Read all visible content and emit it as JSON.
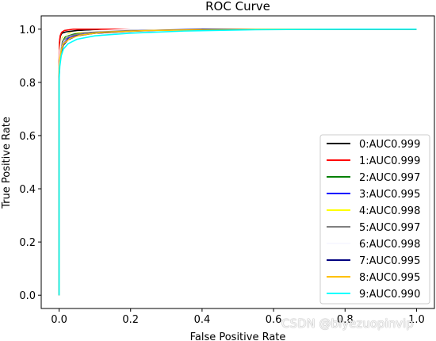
{
  "chart_data": {
    "type": "line",
    "title": "ROC Curve",
    "xlabel": "False Positive Rate",
    "ylabel": "True Positive Rate",
    "xlim": [
      -0.05,
      1.05
    ],
    "ylim": [
      -0.05,
      1.05
    ],
    "xticks": [
      "0.0",
      "0.2",
      "0.4",
      "0.6",
      "0.8",
      "1.0"
    ],
    "yticks": [
      "0.0",
      "0.2",
      "0.4",
      "0.6",
      "0.8",
      "1.0"
    ],
    "grid": false,
    "legend_position": "lower-right",
    "series": [
      {
        "name": "0:AUC0.999",
        "color": "#000000",
        "points": [
          [
            0,
            0
          ],
          [
            0,
            0.86
          ],
          [
            0.001,
            0.93
          ],
          [
            0.002,
            0.96
          ],
          [
            0.004,
            0.975
          ],
          [
            0.008,
            0.985
          ],
          [
            0.02,
            0.99
          ],
          [
            0.05,
            0.995
          ],
          [
            0.12,
            1.0
          ],
          [
            1,
            1
          ]
        ]
      },
      {
        "name": "1:AUC0.999",
        "color": "#ff0000",
        "points": [
          [
            0,
            0
          ],
          [
            0,
            0.88
          ],
          [
            0.001,
            0.95
          ],
          [
            0.003,
            0.975
          ],
          [
            0.007,
            0.988
          ],
          [
            0.015,
            0.995
          ],
          [
            0.04,
            1.0
          ],
          [
            1,
            1
          ]
        ]
      },
      {
        "name": "2:AUC0.997",
        "color": "#008000",
        "points": [
          [
            0,
            0
          ],
          [
            0,
            0.84
          ],
          [
            0.002,
            0.9
          ],
          [
            0.005,
            0.94
          ],
          [
            0.01,
            0.96
          ],
          [
            0.02,
            0.975
          ],
          [
            0.05,
            0.985
          ],
          [
            0.12,
            0.993
          ],
          [
            0.25,
            1.0
          ],
          [
            1,
            1
          ]
        ]
      },
      {
        "name": "3:AUC0.995",
        "color": "#0000ff",
        "points": [
          [
            0,
            0
          ],
          [
            0,
            0.82
          ],
          [
            0.002,
            0.88
          ],
          [
            0.006,
            0.92
          ],
          [
            0.012,
            0.945
          ],
          [
            0.025,
            0.965
          ],
          [
            0.05,
            0.978
          ],
          [
            0.1,
            0.985
          ],
          [
            0.2,
            0.992
          ],
          [
            0.35,
            1.0
          ],
          [
            1,
            1
          ]
        ]
      },
      {
        "name": "4:AUC0.998",
        "color": "#ffff00",
        "points": [
          [
            0,
            0
          ],
          [
            0,
            0.86
          ],
          [
            0.002,
            0.92
          ],
          [
            0.005,
            0.95
          ],
          [
            0.01,
            0.97
          ],
          [
            0.03,
            0.985
          ],
          [
            0.1,
            0.993
          ],
          [
            0.3,
            1.0
          ],
          [
            1,
            1
          ]
        ]
      },
      {
        "name": "5:AUC0.997",
        "color": "#808080",
        "points": [
          [
            0,
            0
          ],
          [
            0,
            0.84
          ],
          [
            0.002,
            0.9
          ],
          [
            0.005,
            0.935
          ],
          [
            0.012,
            0.958
          ],
          [
            0.03,
            0.975
          ],
          [
            0.07,
            0.986
          ],
          [
            0.15,
            0.994
          ],
          [
            0.3,
            1.0
          ],
          [
            1,
            1
          ]
        ]
      },
      {
        "name": "6:AUC0.998",
        "color": "#f8f8ff",
        "points": [
          [
            0,
            0
          ],
          [
            0,
            0.86
          ],
          [
            0.002,
            0.92
          ],
          [
            0.006,
            0.955
          ],
          [
            0.015,
            0.975
          ],
          [
            0.05,
            0.99
          ],
          [
            0.2,
            1.0
          ],
          [
            1,
            1
          ]
        ]
      },
      {
        "name": "7:AUC0.995",
        "color": "#000080",
        "points": [
          [
            0,
            0
          ],
          [
            0,
            0.82
          ],
          [
            0.002,
            0.88
          ],
          [
            0.006,
            0.915
          ],
          [
            0.012,
            0.94
          ],
          [
            0.025,
            0.96
          ],
          [
            0.05,
            0.975
          ],
          [
            0.1,
            0.985
          ],
          [
            0.22,
            0.994
          ],
          [
            0.4,
            1.0
          ],
          [
            1,
            1
          ]
        ]
      },
      {
        "name": "8:AUC0.995",
        "color": "#ffc000",
        "points": [
          [
            0,
            0
          ],
          [
            0,
            0.83
          ],
          [
            0.002,
            0.885
          ],
          [
            0.006,
            0.92
          ],
          [
            0.012,
            0.945
          ],
          [
            0.03,
            0.965
          ],
          [
            0.06,
            0.978
          ],
          [
            0.12,
            0.988
          ],
          [
            0.25,
            0.995
          ],
          [
            0.55,
            1.0
          ],
          [
            1,
            1
          ]
        ]
      },
      {
        "name": "9:AUC0.990",
        "color": "#00ffff",
        "points": [
          [
            0,
            0
          ],
          [
            0,
            0.81
          ],
          [
            0.002,
            0.86
          ],
          [
            0.006,
            0.9
          ],
          [
            0.012,
            0.925
          ],
          [
            0.025,
            0.945
          ],
          [
            0.05,
            0.962
          ],
          [
            0.1,
            0.975
          ],
          [
            0.2,
            0.985
          ],
          [
            0.35,
            0.993
          ],
          [
            0.55,
            0.998
          ],
          [
            0.8,
            1.0
          ],
          [
            1,
            1
          ]
        ]
      }
    ]
  },
  "watermark": "CSDN @biyezuopinvip"
}
